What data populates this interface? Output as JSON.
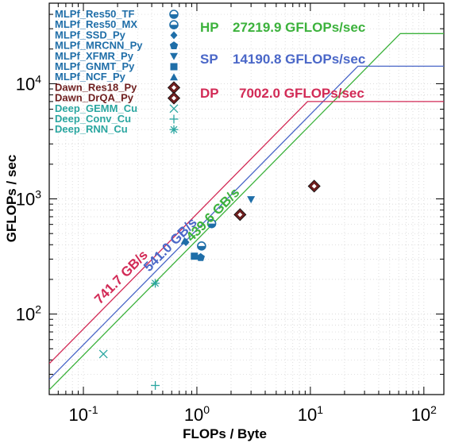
{
  "chart_data": {
    "type": "scatter",
    "xlabel": "FLOPs / Byte",
    "ylabel": "GFLOPs / sec",
    "xscale": "log",
    "yscale": "log",
    "xlim": [
      0.05,
      150
    ],
    "ylim": [
      20,
      50000
    ],
    "grid": true,
    "legend_position": "top-left",
    "x_ticks": [
      {
        "value": 0.1,
        "base": "10",
        "exp": "-1"
      },
      {
        "value": 1,
        "base": "10",
        "exp": "0"
      },
      {
        "value": 10,
        "base": "10",
        "exp": "1"
      },
      {
        "value": 100,
        "base": "10",
        "exp": "2"
      }
    ],
    "y_ticks": [
      {
        "value": 100,
        "base": "10",
        "exp": "2"
      },
      {
        "value": 1000,
        "base": "10",
        "exp": "3"
      },
      {
        "value": 10000,
        "base": "10",
        "exp": "4"
      }
    ],
    "ceilings": [
      {
        "label": "HP",
        "value_text": "27219.9 GFLOPs/sec",
        "peak": 27219.9,
        "bandwidth": 439.6,
        "bandwidth_text": "439.6 GB/s",
        "color": "#3cb23c"
      },
      {
        "label": "SP",
        "value_text": "14190.8 GFLOPs/sec",
        "peak": 14190.8,
        "bandwidth": 541.0,
        "bandwidth_text": "541.0 GB/s",
        "color": "#4a67c8"
      },
      {
        "label": "DP",
        "value_text": "7002.0 GFLOPs/sec",
        "peak": 7002.0,
        "bandwidth": 741.7,
        "bandwidth_text": "741.7 GB/s",
        "color": "#d22a56"
      }
    ],
    "series": [
      {
        "name": "MLPf_Res50_TF",
        "marker": "half-circle",
        "color": "#1f6ea8",
        "points": [
          [
            1.1,
            390
          ]
        ]
      },
      {
        "name": "MLPf_Res50_MX",
        "marker": "half-circle",
        "color": "#1f6ea8",
        "points": [
          [
            1.35,
            610
          ]
        ]
      },
      {
        "name": "MLPf_SSD_Py",
        "marker": "diamond",
        "color": "#1f6ea8",
        "points": [
          [
            0.8,
            420
          ]
        ]
      },
      {
        "name": "MLPf_MRCNN_Py",
        "marker": "pentagon",
        "color": "#1f6ea8",
        "points": [
          [
            1.08,
            310
          ]
        ]
      },
      {
        "name": "MLPf_XFMR_Py",
        "marker": "triangle-down",
        "color": "#1f6ea8",
        "points": [
          [
            3.0,
            990
          ]
        ]
      },
      {
        "name": "MLPf_GNMT_Py",
        "marker": "square",
        "color": "#1f6ea8",
        "points": [
          [
            0.95,
            318
          ]
        ]
      },
      {
        "name": "MLPf_NCF_Py",
        "marker": "triangle-up",
        "color": "#1f6ea8",
        "points": [
          [
            0.78,
            430
          ]
        ]
      },
      {
        "name": "Dawn_Res18_Py",
        "marker": "diamond-outlined",
        "color": "#6e1e1e",
        "points": [
          [
            2.4,
            730
          ]
        ]
      },
      {
        "name": "Dawn_DrQA_Py",
        "marker": "diamond-outlined",
        "color": "#6e1e1e",
        "points": [
          [
            10.8,
            1290
          ]
        ]
      },
      {
        "name": "Deep_GEMM_Cu",
        "marker": "x",
        "color": "#2aa6a0",
        "points": [
          [
            0.15,
            45
          ]
        ]
      },
      {
        "name": "Deep_Conv_Cu",
        "marker": "plus",
        "color": "#2aa6a0",
        "points": [
          [
            0.43,
            24
          ]
        ]
      },
      {
        "name": "Deep_RNN_Cu",
        "marker": "asterisk",
        "color": "#2aa6a0",
        "points": [
          [
            0.43,
            185
          ]
        ]
      }
    ]
  }
}
